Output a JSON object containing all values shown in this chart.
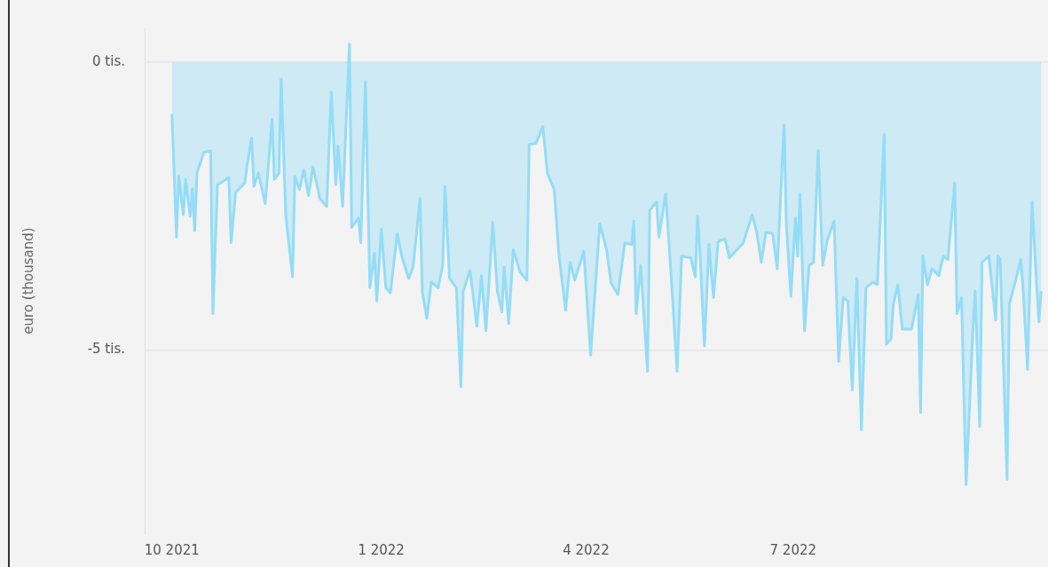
{
  "chart_data": {
    "type": "area",
    "ylabel": "euro (thousand)",
    "color": "#94dcf7",
    "grid": "y",
    "legend": false,
    "xlim": [
      "2021-09-19",
      "2022-10-21"
    ],
    "ylim": [
      -8.2,
      0.6
    ],
    "xticks": [
      {
        "value": "2021-10-01",
        "label": "10 2021"
      },
      {
        "value": "2022-01-01",
        "label": "1 2022"
      },
      {
        "value": "2022-04-01",
        "label": "4 2022"
      },
      {
        "value": "2022-07-01",
        "label": "7 2022"
      }
    ],
    "yticks": [
      {
        "value": 0,
        "label": "0 tis."
      },
      {
        "value": -5,
        "label": "-5 tis."
      }
    ],
    "x": [
      "2021-10-01",
      "2021-10-03",
      "2021-10-04",
      "2021-10-06",
      "2021-10-07",
      "2021-10-09",
      "2021-10-10",
      "2021-10-11",
      "2021-10-12",
      "2021-10-15",
      "2021-10-18",
      "2021-10-19",
      "2021-10-21",
      "2021-10-26",
      "2021-10-27",
      "2021-10-29",
      "2021-11-02",
      "2021-11-03",
      "2021-11-05",
      "2021-11-06",
      "2021-11-08",
      "2021-11-11",
      "2021-11-14",
      "2021-11-15",
      "2021-11-17",
      "2021-11-18",
      "2021-11-20",
      "2021-11-23",
      "2021-11-24",
      "2021-11-26",
      "2021-11-28",
      "2021-11-30",
      "2021-12-02",
      "2021-12-05",
      "2021-12-08",
      "2021-12-10",
      "2021-12-12",
      "2021-12-13",
      "2021-12-15",
      "2021-12-18",
      "2021-12-19",
      "2021-12-22",
      "2021-12-23",
      "2021-12-25",
      "2021-12-27",
      "2021-12-29",
      "2021-12-30",
      "2022-01-01",
      "2022-01-03",
      "2022-01-05",
      "2022-01-08",
      "2022-01-10",
      "2022-01-13",
      "2022-01-15",
      "2022-01-18",
      "2022-01-19",
      "2022-01-21",
      "2022-01-23",
      "2022-01-26",
      "2022-01-28",
      "2022-01-29",
      "2022-01-31",
      "2022-02-03",
      "2022-02-05",
      "2022-02-06",
      "2022-02-09",
      "2022-02-12",
      "2022-02-14",
      "2022-02-16",
      "2022-02-19",
      "2022-02-21",
      "2022-02-23",
      "2022-02-24",
      "2022-02-26",
      "2022-02-28",
      "2022-03-03",
      "2022-03-06",
      "2022-03-07",
      "2022-03-10",
      "2022-03-13",
      "2022-03-15",
      "2022-03-18",
      "2022-03-20",
      "2022-03-23",
      "2022-03-25",
      "2022-03-27",
      "2022-03-31",
      "2022-04-03",
      "2022-04-07",
      "2022-04-10",
      "2022-04-12",
      "2022-04-15",
      "2022-04-18",
      "2022-04-21",
      "2022-04-22",
      "2022-04-23",
      "2022-04-25",
      "2022-04-28",
      "2022-04-29",
      "2022-05-02",
      "2022-05-03",
      "2022-05-06",
      "2022-05-08",
      "2022-05-11",
      "2022-05-13",
      "2022-05-17",
      "2022-05-19",
      "2022-05-20",
      "2022-05-21",
      "2022-05-23",
      "2022-05-25",
      "2022-05-27",
      "2022-05-29",
      "2022-06-01",
      "2022-06-03",
      "2022-06-09",
      "2022-06-13",
      "2022-06-15",
      "2022-06-17",
      "2022-06-19",
      "2022-06-22",
      "2022-06-24",
      "2022-06-27",
      "2022-06-28",
      "2022-06-30",
      "2022-07-02",
      "2022-07-03",
      "2022-07-04",
      "2022-07-06",
      "2022-07-08",
      "2022-07-10",
      "2022-07-12",
      "2022-07-14",
      "2022-07-16",
      "2022-07-19",
      "2022-07-21",
      "2022-07-23",
      "2022-07-25",
      "2022-07-27",
      "2022-07-29",
      "2022-07-31",
      "2022-08-02",
      "2022-08-05",
      "2022-08-07",
      "2022-08-10",
      "2022-08-11",
      "2022-08-13",
      "2022-08-14",
      "2022-08-16",
      "2022-08-18",
      "2022-08-22",
      "2022-08-25",
      "2022-08-26",
      "2022-08-27",
      "2022-08-29",
      "2022-08-31",
      "2022-09-03",
      "2022-09-05",
      "2022-09-07",
      "2022-09-10",
      "2022-09-11",
      "2022-09-13",
      "2022-09-15",
      "2022-09-18",
      "2022-09-19",
      "2022-09-21",
      "2022-09-22",
      "2022-09-25",
      "2022-09-28",
      "2022-09-29",
      "2022-09-30",
      "2022-10-03",
      "2022-10-04",
      "2022-10-07",
      "2022-10-09",
      "2022-10-10",
      "2022-10-12",
      "2022-10-14",
      "2022-10-16",
      "2022-10-17",
      "2022-10-18"
    ],
    "values": [
      -0.9,
      -3.04,
      -1.99,
      -2.65,
      -2.04,
      -2.68,
      -2.2,
      -2.93,
      -1.93,
      -1.57,
      -1.54,
      -4.37,
      -2.13,
      -2.01,
      -3.14,
      -2.26,
      -2.1,
      -1.8,
      -1.32,
      -2.16,
      -1.93,
      -2.46,
      -0.99,
      -2.04,
      -1.93,
      -0.29,
      -2.65,
      -3.73,
      -1.99,
      -2.21,
      -1.87,
      -2.32,
      -1.82,
      -2.37,
      -2.51,
      -0.52,
      -2.13,
      -1.46,
      -2.51,
      0.31,
      -2.87,
      -2.71,
      -3.14,
      -0.34,
      -3.92,
      -3.32,
      -4.15,
      -2.9,
      -3.92,
      -4.01,
      -2.98,
      -3.37,
      -3.76,
      -3.56,
      -2.37,
      -3.98,
      -4.45,
      -3.82,
      -3.92,
      -3.53,
      -2.16,
      -3.76,
      -3.92,
      -5.64,
      -3.98,
      -3.62,
      -4.59,
      -3.71,
      -4.67,
      -2.78,
      -3.98,
      -4.34,
      -3.56,
      -4.54,
      -3.26,
      -3.65,
      -3.79,
      -1.43,
      -1.41,
      -1.12,
      -1.93,
      -2.21,
      -3.32,
      -4.31,
      -3.48,
      -3.79,
      -3.29,
      -5.09,
      -2.81,
      -3.26,
      -3.84,
      -4.04,
      -3.14,
      -3.17,
      -2.76,
      -4.37,
      -3.53,
      -5.37,
      -2.57,
      -2.43,
      -3.04,
      -2.29,
      -3.48,
      -5.37,
      -3.37,
      -3.4,
      -3.73,
      -2.68,
      -3.26,
      -4.93,
      -3.17,
      -4.09,
      -3.12,
      -3.07,
      -3.4,
      -3.15,
      -2.65,
      -2.96,
      -3.48,
      -2.96,
      -2.98,
      -3.59,
      -1.09,
      -2.81,
      -4.07,
      -2.71,
      -3.37,
      -2.29,
      -4.67,
      -3.53,
      -3.48,
      -1.54,
      -3.53,
      -3.09,
      -2.76,
      -5.2,
      -4.09,
      -4.15,
      -5.7,
      -3.76,
      -6.39,
      -3.92,
      -3.82,
      -3.87,
      -1.26,
      -4.9,
      -4.81,
      -4.21,
      -3.87,
      -4.64,
      -4.64,
      -4.04,
      -6.09,
      -3.37,
      -3.87,
      -3.59,
      -3.71,
      -3.37,
      -3.43,
      -2.1,
      -4.37,
      -4.09,
      -7.34,
      -4.65,
      -3.98,
      -6.33,
      -3.48,
      -3.37,
      -4.48,
      -3.37,
      -3.43,
      -7.25,
      -4.21,
      -3.76,
      -3.43,
      -3.9,
      -5.34,
      -2.43,
      -3.87,
      -4.51,
      -3.98
    ]
  }
}
